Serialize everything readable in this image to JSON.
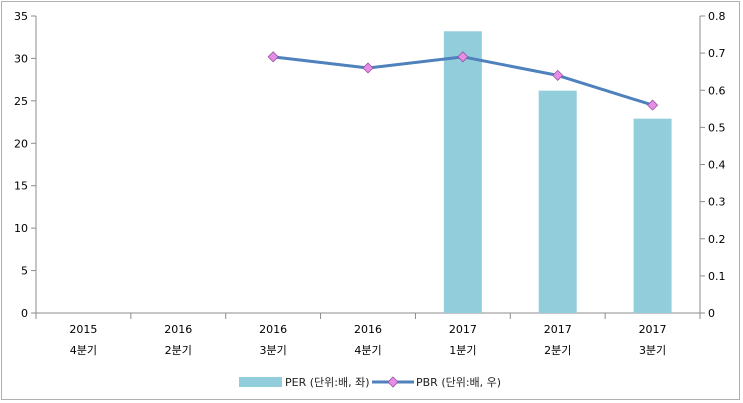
{
  "chart_data": {
    "type": "bar",
    "categories": [
      [
        "2015",
        "4분기"
      ],
      [
        "2016",
        "2분기"
      ],
      [
        "2016",
        "3분기"
      ],
      [
        "2016",
        "4분기"
      ],
      [
        "2017",
        "1분기"
      ],
      [
        "2017",
        "2분기"
      ],
      [
        "2017",
        "3분기"
      ]
    ],
    "series": [
      {
        "name": "PER (단위:배, 좌)",
        "type": "bar",
        "axis": "left",
        "color": "#92cddc",
        "values": [
          null,
          null,
          null,
          null,
          33.2,
          26.2,
          22.9
        ]
      },
      {
        "name": "PBR (단위:배, 우)",
        "type": "line",
        "axis": "right",
        "color": "#4f81bd",
        "marker_color": "#e58ee5",
        "values": [
          null,
          null,
          0.69,
          0.66,
          0.69,
          0.64,
          0.56
        ]
      }
    ],
    "y_left": {
      "min": 0,
      "max": 35,
      "step": 5,
      "ticks": [
        "0",
        "5",
        "10",
        "15",
        "20",
        "25",
        "30",
        "35"
      ]
    },
    "y_right": {
      "min": 0,
      "max": 0.8,
      "step": 0.1,
      "ticks": [
        "0",
        "0.1",
        "0.2",
        "0.3",
        "0.4",
        "0.5",
        "0.6",
        "0.7",
        "0.8"
      ]
    },
    "grid": false,
    "legend_position": "bottom"
  }
}
